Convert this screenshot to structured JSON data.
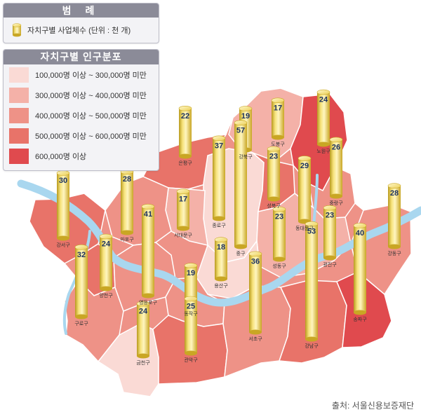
{
  "legend": {
    "title": "범 례",
    "icon": "cylinder-icon",
    "item_label": "자치구별 사업체수 (단위 : 천 개)"
  },
  "population": {
    "title": "자치구별 인구분포",
    "ranges": [
      {
        "label": "100,000명 이상 ~ 300,000명 미만",
        "color": "#fadad5"
      },
      {
        "label": "300,000명 이상 ~ 400,000명 미만",
        "color": "#f4b1a8"
      },
      {
        "label": "400,000명 이상 ~ 500,000명 미만",
        "color": "#ee9287"
      },
      {
        "label": "500,000명 이상 ~ 600,000명 미만",
        "color": "#e87369"
      },
      {
        "label": "600,000명 이상",
        "color": "#e04a4e"
      }
    ]
  },
  "districts": [
    {
      "name": "강북구",
      "businesses": 19,
      "population_class": 2
    },
    {
      "name": "도봉구",
      "businesses": 17,
      "population_class": 2
    },
    {
      "name": "노원구",
      "businesses": 24,
      "population_class": 5
    },
    {
      "name": "은평구",
      "businesses": 22,
      "population_class": 4
    },
    {
      "name": "종로구",
      "businesses": 37,
      "population_class": 1
    },
    {
      "name": "중구",
      "businesses": 57,
      "population_class": 1
    },
    {
      "name": "성북구",
      "businesses": 23,
      "population_class": 4
    },
    {
      "name": "중랑구",
      "businesses": 26,
      "population_class": 3
    },
    {
      "name": "동대문구",
      "businesses": 29,
      "population_class": 3
    },
    {
      "name": "서대문구",
      "businesses": 17,
      "population_class": 2
    },
    {
      "name": "마포구",
      "businesses": 28,
      "population_class": 3
    },
    {
      "name": "강서구",
      "businesses": 30,
      "population_class": 4
    },
    {
      "name": "성동구",
      "businesses": 23,
      "population_class": 2
    },
    {
      "name": "광진구",
      "businesses": 23,
      "population_class": 2
    },
    {
      "name": "강동구",
      "businesses": 28,
      "population_class": 3
    },
    {
      "name": "영등포구",
      "businesses": 41,
      "population_class": 3
    },
    {
      "name": "용산구",
      "businesses": 18,
      "population_class": 1
    },
    {
      "name": "양천구",
      "businesses": 24,
      "population_class": 4
    },
    {
      "name": "구로구",
      "businesses": 32,
      "population_class": 3
    },
    {
      "name": "동작구",
      "businesses": 19,
      "population_class": 3
    },
    {
      "name": "송파구",
      "businesses": 40,
      "population_class": 5
    },
    {
      "name": "강남구",
      "businesses": 53,
      "population_class": 4
    },
    {
      "name": "서초구",
      "businesses": 36,
      "population_class": 3
    },
    {
      "name": "금천구",
      "businesses": 24,
      "population_class": 1
    },
    {
      "name": "관악구",
      "businesses": 25,
      "population_class": 4
    }
  ],
  "source": "출처: 서울신용보증재단"
}
